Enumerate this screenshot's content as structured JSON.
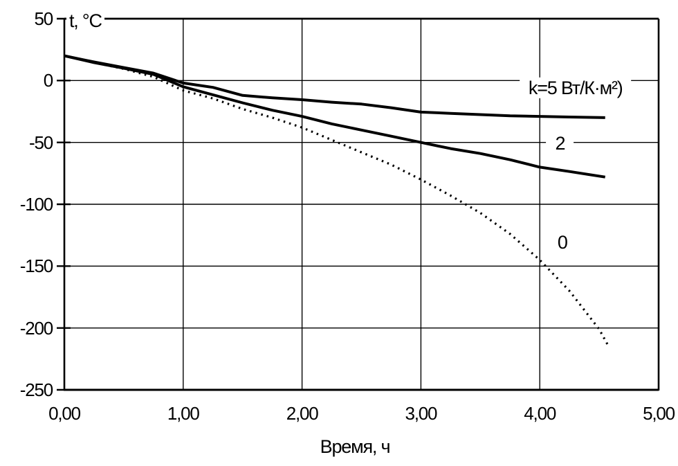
{
  "chart_data": {
    "type": "line",
    "title": "",
    "xlabel": "Время, ч",
    "ylabel": "t, °C",
    "xlim": [
      0,
      5
    ],
    "ylim": [
      -250,
      50
    ],
    "grid": true,
    "legend_position": "none",
    "background_color": "#ffffff",
    "line_color": "#000000",
    "x_ticks": {
      "values": [
        0,
        1,
        2,
        3,
        4,
        5
      ],
      "labels": [
        "0,00",
        "1,00",
        "2,00",
        "3,00",
        "4,00",
        "5,00"
      ]
    },
    "y_ticks": {
      "values": [
        50,
        0,
        -50,
        -100,
        -150,
        -200,
        -250
      ],
      "labels": [
        "50",
        "0",
        "-50",
        "-100",
        "-150",
        "-200",
        "-250"
      ]
    },
    "series": [
      {
        "name": "k=5",
        "style": "solid",
        "x": [
          0,
          0.25,
          0.5,
          0.75,
          1,
          1.25,
          1.5,
          1.75,
          2,
          2.25,
          2.5,
          2.75,
          3,
          3.25,
          3.5,
          3.75,
          4,
          4.25,
          4.55
        ],
        "y": [
          20,
          15,
          10.5,
          6,
          -2,
          -5.5,
          -12,
          -14,
          -15.5,
          -17.5,
          -19,
          -22,
          -25.5,
          -26.5,
          -27.5,
          -28.5,
          -29,
          -29.5,
          -30
        ]
      },
      {
        "name": "k=2",
        "style": "solid",
        "x": [
          0,
          0.25,
          0.5,
          0.75,
          1,
          1.25,
          1.5,
          1.75,
          2,
          2.25,
          2.5,
          2.75,
          3,
          3.25,
          3.5,
          3.75,
          4,
          4.25,
          4.55
        ],
        "y": [
          20,
          14.5,
          10,
          5,
          -5,
          -11.5,
          -18,
          -24,
          -29,
          -35,
          -40,
          -45,
          -50,
          -55,
          -59,
          -64,
          -70,
          -73.5,
          -78
        ]
      },
      {
        "name": "k=0",
        "style": "dotted",
        "x": [
          0,
          0.25,
          0.5,
          0.75,
          1,
          1.25,
          1.5,
          1.75,
          2,
          2.25,
          2.5,
          2.75,
          3,
          3.25,
          3.5,
          3.75,
          4,
          4.25,
          4.5,
          4.58
        ],
        "y": [
          20,
          14.5,
          9.5,
          3,
          -8,
          -14.5,
          -23,
          -30,
          -38,
          -48,
          -58,
          -68,
          -80,
          -93,
          -107,
          -124,
          -145,
          -170,
          -201,
          -215
        ]
      }
    ],
    "annotations": [
      {
        "text": "k=5 Вт/К·м²)",
        "x": 4.3,
        "y": -6,
        "series": "k=5"
      },
      {
        "text": "2",
        "x": 4.17,
        "y": -51,
        "series": "k=2"
      },
      {
        "text": "0",
        "x": 4.19,
        "y": -131,
        "series": "k=0"
      }
    ]
  }
}
